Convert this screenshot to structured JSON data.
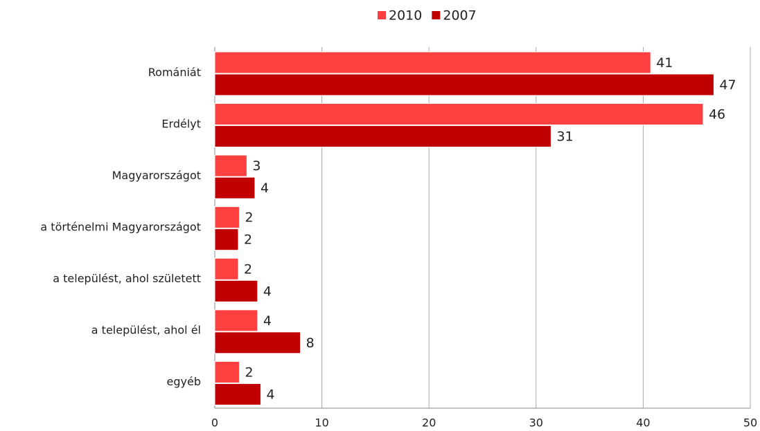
{
  "chart_data": {
    "type": "hbar",
    "categories": [
      "Romániát",
      "Erdélyt",
      "Magyarországot",
      "a történelmi Magyarországot",
      "a települést, ahol született",
      "a települést, ahol él",
      "egyéb"
    ],
    "series": [
      {
        "name": "2010",
        "color": "#ff4040",
        "values": [
          40.7,
          45.6,
          3.0,
          2.3,
          2.2,
          4.0,
          2.3
        ],
        "value_labels": [
          "41",
          "46",
          "3",
          "2",
          "2",
          "4",
          "2"
        ]
      },
      {
        "name": "2007",
        "color": "#c00000",
        "values": [
          46.6,
          31.4,
          3.75,
          2.2,
          4.0,
          8.0,
          4.3
        ],
        "value_labels": [
          "47",
          "31",
          "4",
          "2",
          "4",
          "8",
          "4"
        ]
      }
    ],
    "xlim": [
      0,
      50
    ],
    "xticks": [
      0,
      10,
      20,
      30,
      40,
      50
    ],
    "grid": true,
    "legend": "top"
  }
}
